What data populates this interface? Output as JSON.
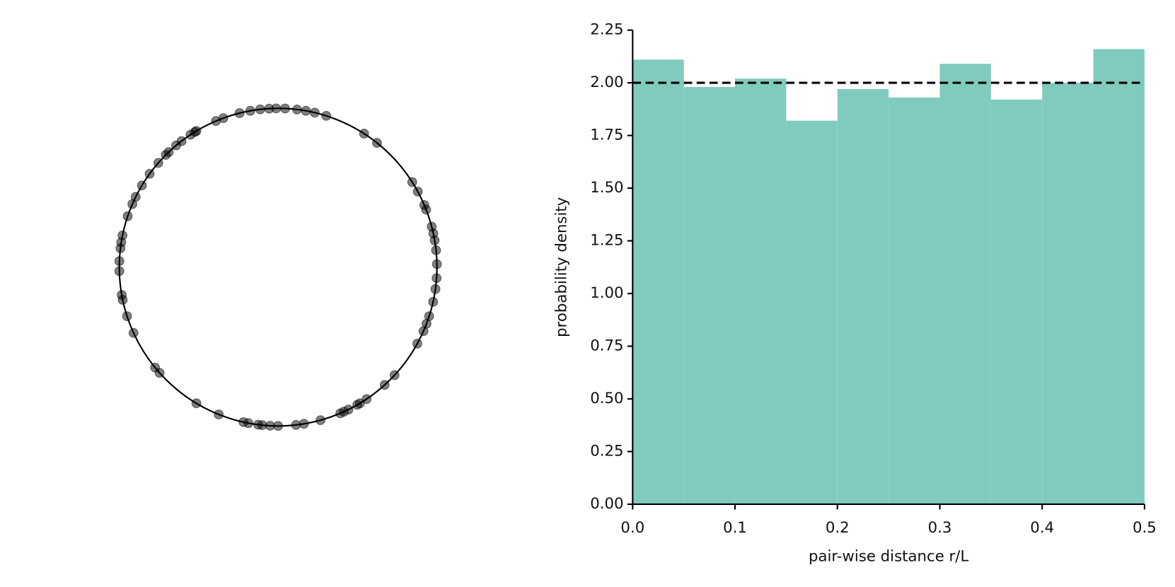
{
  "chart_data": [
    {
      "type": "circle-scatter",
      "color": "#000000",
      "opacity": 0.5,
      "positions": [
        0.961,
        0.972,
        0.982,
        0.991,
        0.998,
        0.007,
        0.019,
        0.028,
        0.037,
        0.049,
        0.091,
        0.107,
        0.16,
        0.171,
        0.186,
        0.191,
        0.209,
        0.216,
        0.223,
        0.233,
        0.247,
        0.261,
        0.272,
        0.285,
        0.3,
        0.308,
        0.316,
        0.33,
        0.369,
        0.383,
        0.406,
        0.414,
        0.417,
        0.427,
        0.432,
        0.436,
        0.457,
        0.474,
        0.482,
        0.5,
        0.508,
        0.516,
        0.52,
        0.53,
        0.535,
        0.561,
        0.586,
        0.634,
        0.641,
        0.682,
        0.7,
        0.717,
        0.722,
        0.746,
        0.756,
        0.769,
        0.775,
        0.782,
        0.802,
        0.815,
        0.823,
        0.836,
        0.85,
        0.864,
        0.875,
        0.879,
        0.889,
        0.896,
        0.907,
        0.912,
        0.914,
        0.936,
        0.944
      ]
    },
    {
      "type": "histogram",
      "color": "#80cbbe",
      "bins": [
        0,
        0.05,
        0.1,
        0.15,
        0.2,
        0.25,
        0.3,
        0.35,
        0.4,
        0.45,
        0.5
      ],
      "values": [
        2.11,
        1.98,
        2.02,
        1.82,
        1.97,
        1.93,
        2.09,
        1.92,
        2.0,
        2.16
      ],
      "hline": 2,
      "x_label": "pair-wise distance r/L",
      "y_label": "probability density",
      "xlim": [
        0,
        0.5
      ],
      "ylim": [
        0,
        2.25
      ],
      "xticks": [
        {
          "value": 0,
          "label": "0.0"
        },
        0.1,
        0.2,
        0.3,
        0.4,
        0.5
      ],
      "yticks": [
        {
          "value": 0,
          "label": "0.00"
        },
        0.25,
        {
          "value": 0.5,
          "label": "0.50"
        },
        0.75,
        {
          "value": 1,
          "label": "1.00"
        },
        1.25,
        {
          "value": 1.5,
          "label": "1.50"
        },
        1.75,
        {
          "value": 2,
          "label": "2.00"
        },
        2.25
      ]
    }
  ]
}
